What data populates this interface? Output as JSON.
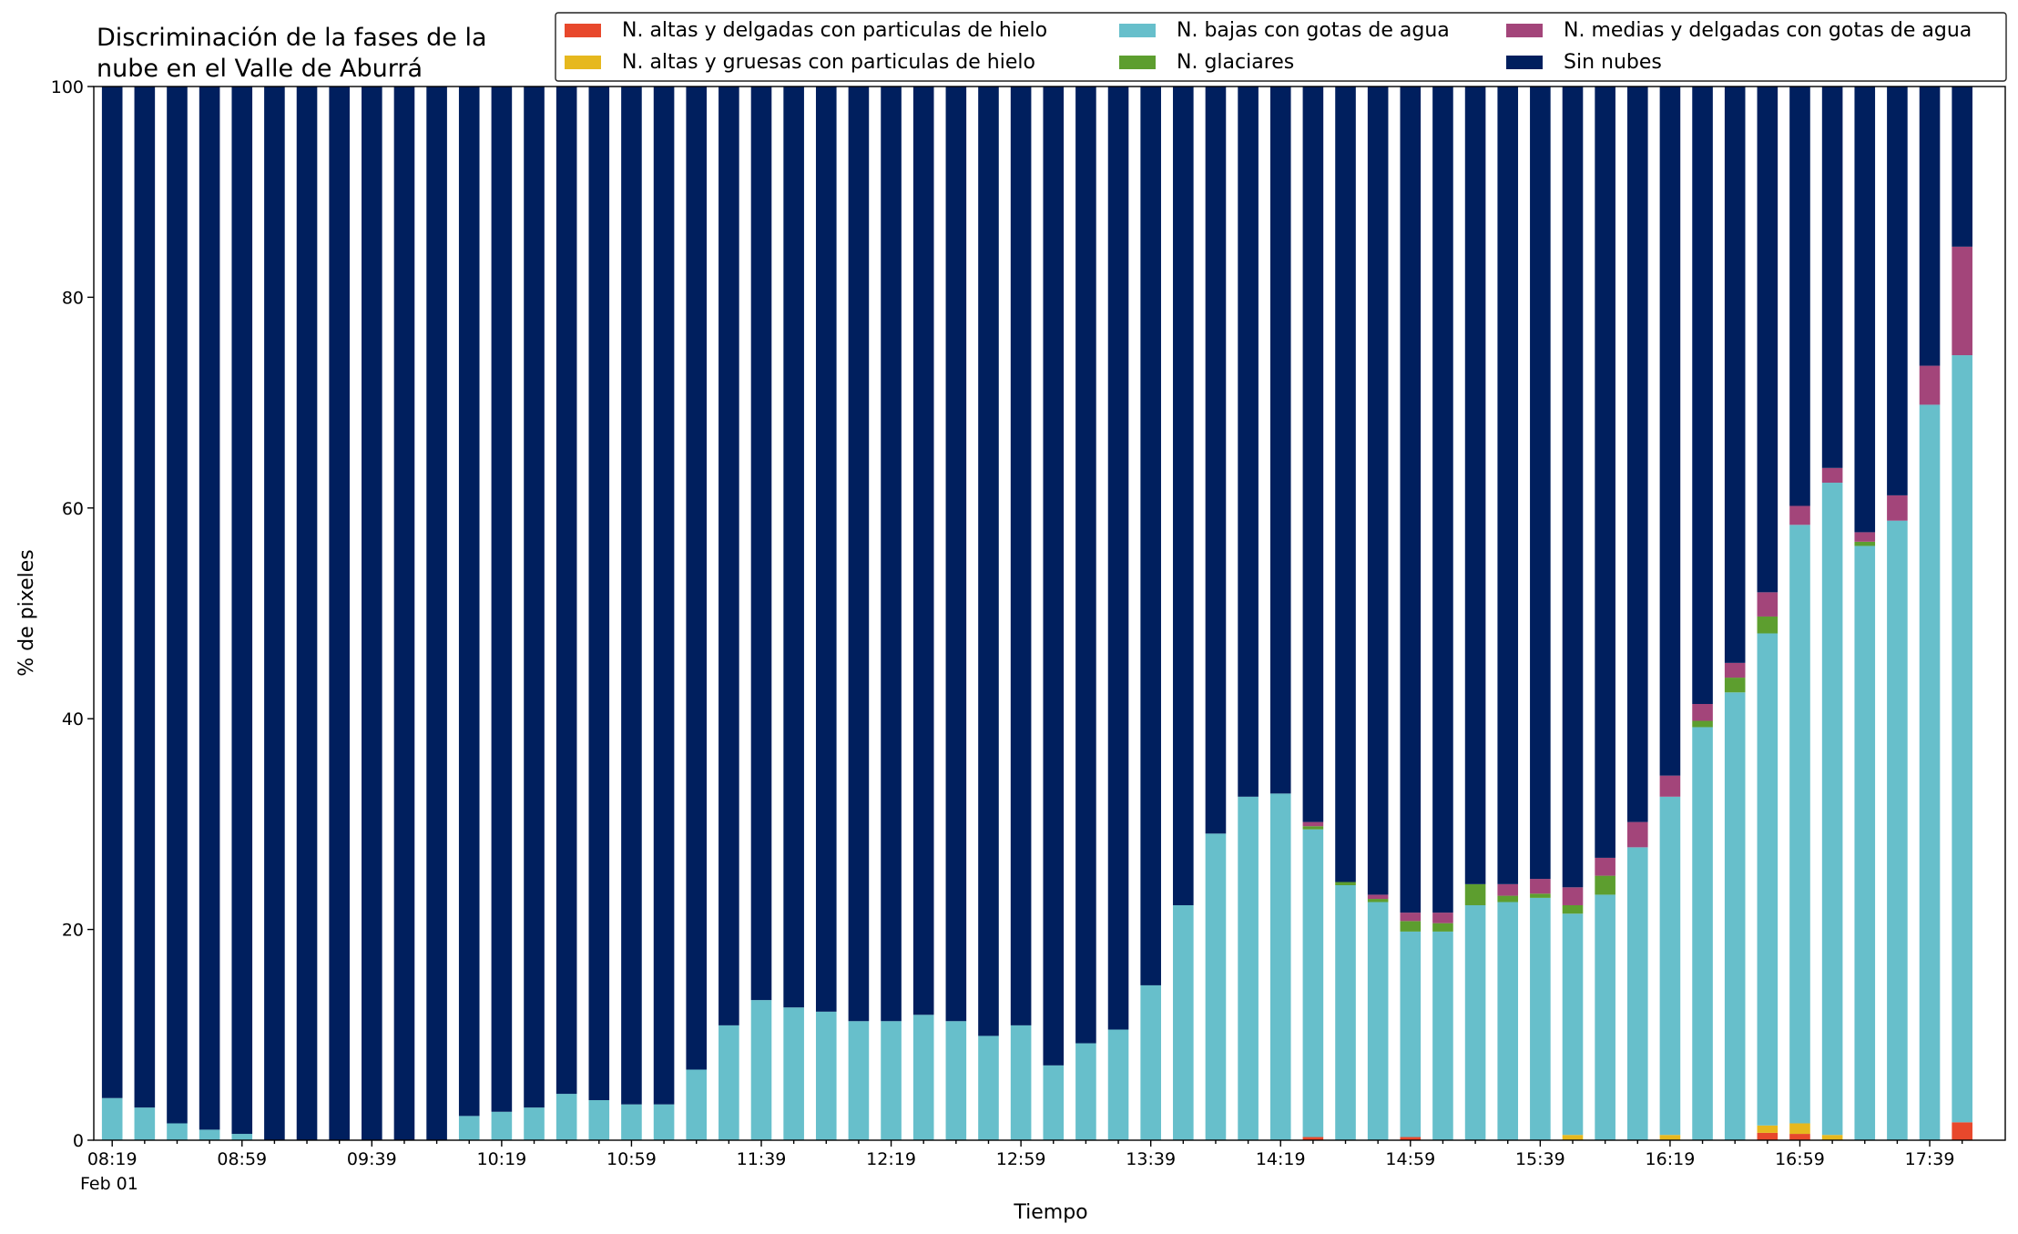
{
  "chart_data": {
    "type": "stacked_bar",
    "title": "Discriminación de la fases de la\nnube en el Valle de Aburrá",
    "xlabel": "Tiempo",
    "ylabel": "% de pixeles",
    "x_sublabel": "Feb 01",
    "categories": [
      "08:19",
      null,
      null,
      null,
      "08:59",
      null,
      null,
      null,
      "09:39",
      null,
      null,
      null,
      "10:19",
      null,
      null,
      null,
      "10:59",
      null,
      null,
      null,
      "11:39",
      null,
      null,
      null,
      "12:19",
      null,
      null,
      null,
      "12:59",
      null,
      null,
      null,
      "13:39",
      null,
      null,
      null,
      "14:19",
      null,
      null,
      null,
      "14:59",
      null,
      null,
      null,
      "15:39",
      null,
      null,
      null,
      "16:19",
      null,
      null,
      null,
      "16:59",
      null,
      null,
      null,
      "17:39",
      null
    ],
    "ylim": [
      0,
      100
    ],
    "yticks": [
      0,
      20,
      40,
      60,
      80,
      100
    ],
    "legend": "top-right",
    "series": [
      {
        "name": "N. altas y delgadas con particulas de hielo",
        "color": "#e8482c",
        "values": [
          0,
          0,
          0,
          0,
          0,
          0,
          0,
          0,
          0,
          0,
          0,
          0,
          0,
          0,
          0,
          0,
          0,
          0,
          0,
          0,
          0,
          0,
          0,
          0,
          0,
          0,
          0,
          0,
          0,
          0,
          0,
          0,
          0,
          0,
          0,
          0,
          0,
          0.3,
          0,
          0,
          0.3,
          0,
          0,
          0,
          0,
          0,
          0,
          0,
          0,
          0,
          0,
          0.7,
          0.6,
          0,
          0,
          0,
          0,
          1.7
        ]
      },
      {
        "name": "N. altas y gruesas con particulas de hielo",
        "color": "#e6b81e",
        "values": [
          0,
          0,
          0,
          0,
          0,
          0,
          0,
          0,
          0,
          0,
          0,
          0,
          0,
          0,
          0,
          0,
          0,
          0,
          0,
          0,
          0,
          0,
          0,
          0,
          0,
          0,
          0,
          0,
          0,
          0,
          0,
          0,
          0,
          0,
          0,
          0,
          0,
          0,
          0,
          0,
          0,
          0,
          0,
          0,
          0,
          0.5,
          0,
          0,
          0.5,
          0,
          0,
          0.7,
          1.0,
          0.5,
          0,
          0,
          0,
          0
        ]
      },
      {
        "name": "N. bajas con gotas de agua",
        "color": "#67bfcb",
        "values": [
          4.0,
          3.1,
          1.6,
          1.0,
          0.6,
          0,
          0,
          0,
          0,
          0,
          0,
          2.3,
          2.7,
          3.1,
          4.4,
          3.8,
          3.4,
          3.4,
          6.7,
          10.9,
          13.3,
          12.6,
          12.2,
          11.3,
          11.3,
          11.9,
          11.3,
          9.9,
          10.9,
          7.1,
          9.2,
          10.5,
          14.7,
          22.3,
          29.1,
          32.6,
          32.9,
          29.2,
          24.2,
          22.6,
          19.5,
          19.8,
          22.3,
          22.6,
          23.0,
          21.0,
          23.3,
          27.8,
          32.1,
          39.2,
          42.5,
          46.7,
          56.8,
          61.9,
          56.4,
          58.8,
          69.8,
          72.8
        ]
      },
      {
        "name": "N. glaciares",
        "color": "#5d9e2f",
        "values": [
          0,
          0,
          0,
          0,
          0,
          0,
          0,
          0,
          0,
          0,
          0,
          0,
          0,
          0,
          0,
          0,
          0,
          0,
          0,
          0,
          0,
          0,
          0,
          0,
          0,
          0,
          0,
          0,
          0,
          0,
          0,
          0,
          0,
          0,
          0,
          0,
          0,
          0.3,
          0.3,
          0.3,
          1.0,
          0.8,
          2.0,
          0.6,
          0.4,
          0.8,
          1.8,
          0,
          0,
          0.6,
          1.4,
          1.6,
          0,
          0,
          0.4,
          0,
          0,
          0
        ]
      },
      {
        "name": "N. medias y delgadas con gotas de agua",
        "color": "#a3457a",
        "values": [
          0,
          0,
          0,
          0,
          0,
          0,
          0,
          0,
          0,
          0,
          0,
          0,
          0,
          0,
          0,
          0,
          0,
          0,
          0,
          0,
          0,
          0,
          0,
          0,
          0,
          0,
          0,
          0,
          0,
          0,
          0,
          0,
          0,
          0,
          0,
          0,
          0,
          0.4,
          0,
          0.4,
          0.8,
          1.0,
          0,
          1.1,
          1.4,
          1.7,
          1.7,
          2.4,
          2.0,
          1.6,
          1.4,
          2.3,
          1.8,
          1.4,
          0.9,
          2.4,
          3.7,
          10.3
        ]
      },
      {
        "name": "Sin nubes",
        "color": "#001f5e",
        "values": [
          96.0,
          96.9,
          98.4,
          99.0,
          99.4,
          100,
          100,
          100,
          100,
          100,
          100,
          97.7,
          97.3,
          96.9,
          95.6,
          96.2,
          96.6,
          96.6,
          93.3,
          89.1,
          86.7,
          87.4,
          87.8,
          88.7,
          88.7,
          88.1,
          88.7,
          90.1,
          89.1,
          92.9,
          90.8,
          89.5,
          85.3,
          77.7,
          70.9,
          67.4,
          67.1,
          69.8,
          75.5,
          76.7,
          78.4,
          78.4,
          75.7,
          75.7,
          75.2,
          76.0,
          73.2,
          69.8,
          65.4,
          58.6,
          54.7,
          48.0,
          39.8,
          36.2,
          42.3,
          38.8,
          26.5,
          15.2
        ]
      }
    ]
  }
}
